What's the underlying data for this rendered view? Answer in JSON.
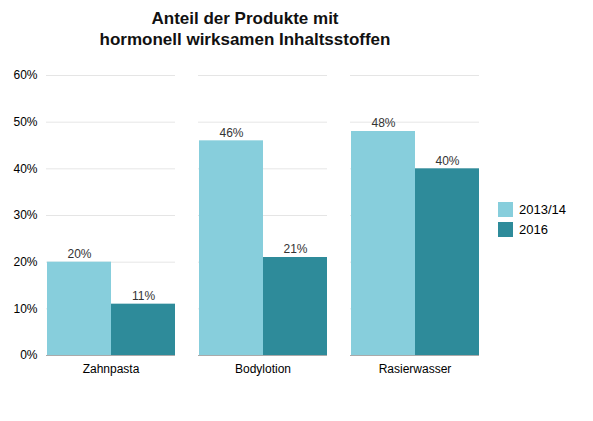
{
  "chart_data": {
    "type": "bar",
    "title": "Anteil der Produkte mit\nhormonell wirksamen Inhaltsstoffen",
    "categories": [
      "Zahnpasta",
      "Bodylotion",
      "Rasierwasser"
    ],
    "series": [
      {
        "name": "2013/14",
        "color": "#87CEDC",
        "values": [
          20,
          46,
          48
        ],
        "value_labels": [
          "20%",
          "46%",
          "48%"
        ]
      },
      {
        "name": "2016",
        "color": "#2E8B9A",
        "values": [
          11,
          21,
          40
        ],
        "value_labels": [
          "11%",
          "21%",
          "40%"
        ]
      }
    ],
    "ylim": [
      0,
      60
    ],
    "yticks": [
      {
        "value": 0,
        "label": "0%"
      },
      {
        "value": 10,
        "label": "10%"
      },
      {
        "value": 20,
        "label": "20%"
      },
      {
        "value": 30,
        "label": "30%"
      },
      {
        "value": 40,
        "label": "40%"
      },
      {
        "value": 50,
        "label": "50%"
      },
      {
        "value": 60,
        "label": "60%"
      }
    ],
    "grid": true,
    "data_labels": true,
    "legend": "right"
  }
}
